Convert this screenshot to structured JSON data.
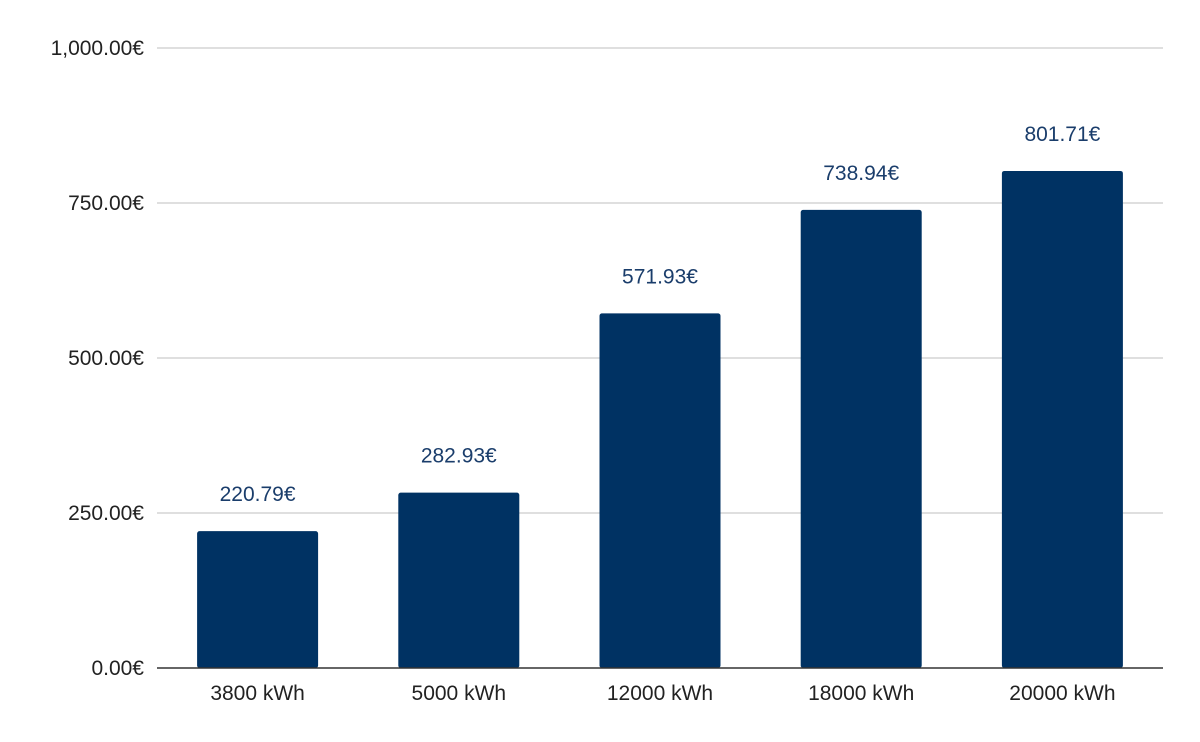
{
  "chart_data": {
    "type": "bar",
    "categories": [
      "3800 kWh",
      "5000 kWh",
      "12000 kWh",
      "18000 kWh",
      "20000 kWh"
    ],
    "series": [
      {
        "values": [
          220.79,
          282.93,
          571.93,
          738.94,
          801.71
        ],
        "data_labels": [
          "220.79€",
          "282.93€",
          "571.93€",
          "738.94€",
          "801.71€"
        ]
      }
    ],
    "title": "",
    "xlabel": "",
    "ylabel": "",
    "ylim": [
      0,
      1000
    ],
    "y_ticks": [
      0,
      250,
      500,
      750,
      1000
    ],
    "y_tick_labels": [
      "0.00€",
      "250.00€",
      "500.00€",
      "750.00€",
      "1,000.00€"
    ],
    "grid": true,
    "legend": "none",
    "colors": {
      "bar": "#003263",
      "data_label": "#1a3d6b",
      "grid": "#cccccc",
      "axis": "#333333"
    }
  }
}
